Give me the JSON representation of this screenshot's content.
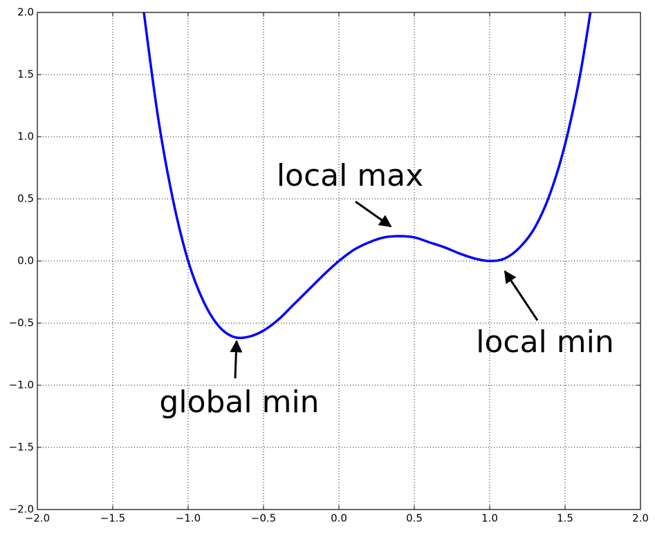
{
  "chart_data": {
    "type": "line",
    "x": [
      -1.3,
      -1.2,
      -1.1,
      -1.0,
      -0.9,
      -0.8,
      -0.7,
      -0.6,
      -0.5,
      -0.4,
      -0.3,
      -0.2,
      -0.1,
      0.0,
      0.1,
      0.2,
      0.3,
      0.4,
      0.5,
      0.6,
      0.7,
      0.8,
      0.9,
      1.0,
      1.1,
      1.2,
      1.3,
      1.4,
      1.5,
      1.6,
      1.7
    ],
    "series": [
      {
        "color": "#0000ff",
        "values": [
          2.06,
          1.16,
          0.49,
          0,
          -0.32,
          -0.52,
          -0.61,
          -0.61,
          -0.56,
          -0.47,
          -0.35,
          -0.23,
          -0.11,
          0,
          0.09,
          0.15,
          0.19,
          0.2,
          0.19,
          0.15,
          0.11,
          0.06,
          0.02,
          0,
          0.02,
          0.11,
          0.27,
          0.54,
          0.94,
          1.5,
          2.25
        ]
      }
    ],
    "xlim": [
      -2,
      2
    ],
    "ylim": [
      -2,
      2
    ],
    "xticks": [
      {
        "value": -2,
        "label": "−2.0"
      },
      {
        "value": -1.5,
        "label": "−1.5"
      },
      {
        "value": -1,
        "label": "−1.0"
      },
      {
        "value": -0.5,
        "label": "−0.5"
      },
      {
        "value": 0,
        "label": "0.0"
      },
      0.5,
      {
        "value": 1,
        "label": "1.0"
      },
      1.5,
      {
        "value": 2,
        "label": "2.0"
      }
    ],
    "yticks": [
      {
        "value": -2,
        "label": "−2.0"
      },
      {
        "value": -1.5,
        "label": "−1.5"
      },
      {
        "value": -1,
        "label": "−1.0"
      },
      {
        "value": -0.5,
        "label": "−0.5"
      },
      {
        "value": 0,
        "label": "0.0"
      },
      0.5,
      {
        "value": 1,
        "label": "1.0"
      },
      1.5,
      {
        "value": 2,
        "label": "2.0"
      }
    ],
    "grid": true,
    "annotations": [
      "local max",
      "local min",
      "global min"
    ]
  }
}
